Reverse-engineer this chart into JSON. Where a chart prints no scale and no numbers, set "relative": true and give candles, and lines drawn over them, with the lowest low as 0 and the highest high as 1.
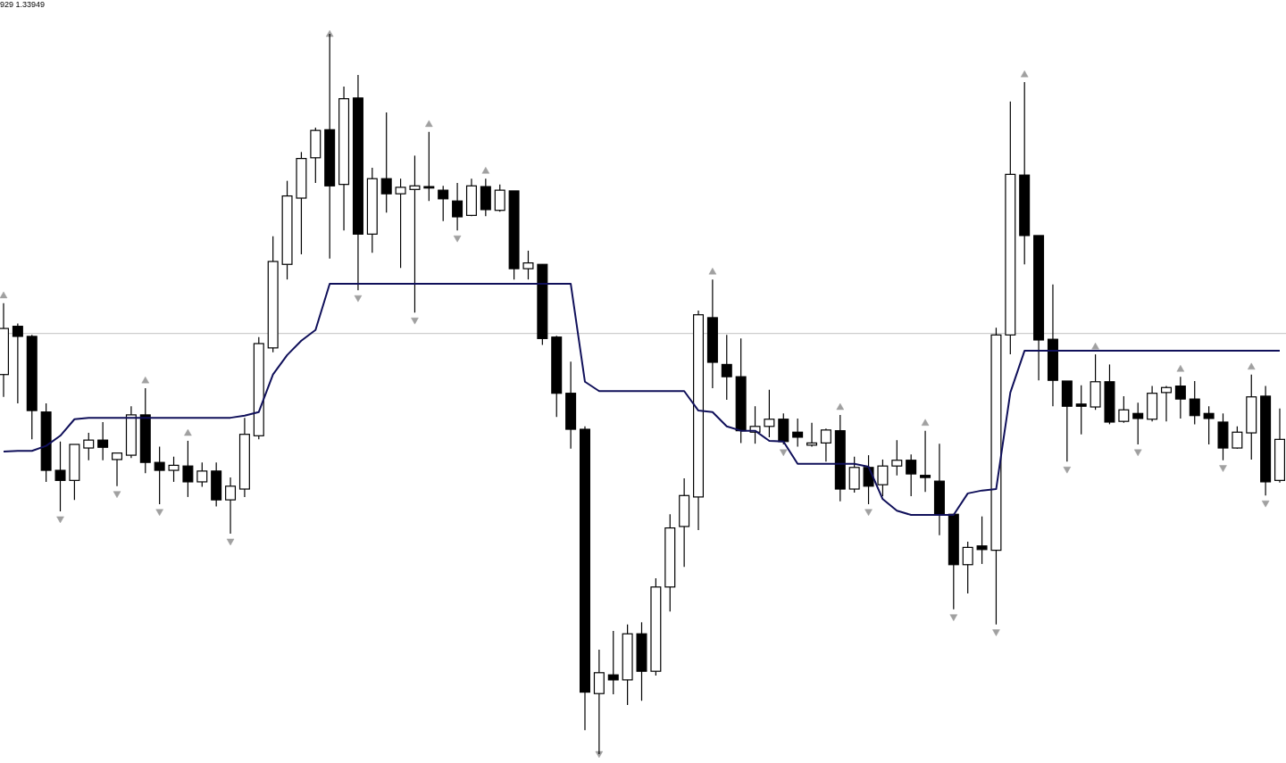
{
  "chart_data": {
    "type": "candlestick",
    "relative": true,
    "annotations": [
      "929 1.33949"
    ],
    "ref_lines": [
      {
        "axis": "y",
        "value": 0.584,
        "color": "#c0c0c0"
      }
    ],
    "categories": [
      null,
      null,
      null,
      null,
      null,
      null,
      null,
      null,
      null,
      null,
      null,
      null,
      null,
      null,
      null,
      null,
      null,
      null,
      null,
      null,
      null,
      null,
      null,
      null,
      null,
      null,
      null,
      null,
      null,
      null,
      null,
      null,
      null,
      null,
      null,
      null,
      null,
      null,
      null,
      null,
      null,
      null,
      null,
      null,
      null,
      null,
      null,
      null,
      null,
      null,
      null,
      null,
      null,
      null,
      null,
      null,
      null,
      null,
      null,
      null,
      null,
      null,
      null,
      null,
      null,
      null,
      null,
      null,
      null,
      null,
      null,
      null,
      null,
      null,
      null,
      null,
      null,
      null,
      null,
      null,
      null,
      null,
      null,
      null,
      null,
      null,
      null,
      null,
      null,
      null,
      null
    ],
    "series": [
      {
        "type": "line",
        "color": "#10105a",
        "marker": "none",
        "line_style": "solid",
        "values": [
          0.42,
          0.421,
          0.421,
          0.428,
          0.442,
          0.465,
          0.467,
          0.467,
          0.467,
          0.467,
          0.467,
          0.467,
          0.467,
          0.467,
          0.467,
          0.467,
          0.467,
          0.47,
          0.475,
          0.527,
          0.554,
          0.574,
          0.589,
          0.653,
          0.653,
          0.653,
          0.653,
          0.653,
          0.653,
          0.653,
          0.653,
          0.653,
          0.653,
          0.653,
          0.653,
          0.653,
          0.653,
          0.653,
          0.653,
          0.653,
          0.653,
          0.517,
          0.504,
          0.504,
          0.504,
          0.504,
          0.504,
          0.504,
          0.504,
          0.477,
          0.475,
          0.455,
          0.449,
          0.449,
          0.435,
          0.434,
          0.403,
          0.403,
          0.403,
          0.403,
          0.403,
          0.399,
          0.354,
          0.338,
          0.332,
          0.332,
          0.332,
          0.332,
          0.362,
          0.366,
          0.368,
          0.502,
          0.56,
          0.56,
          0.56,
          0.56,
          0.56,
          0.56,
          0.56,
          0.56,
          0.56,
          0.56,
          0.56,
          0.56,
          0.56,
          0.56,
          0.56,
          0.56,
          0.56,
          0.56,
          0.56
        ]
      },
      {
        "type": "scatter",
        "color": "#a0a0a0",
        "marker": "triangle",
        "values": [
          0.637,
          null,
          null,
          null,
          0.326,
          null,
          null,
          null,
          0.361,
          null,
          0.519,
          0.336,
          null,
          0.446,
          null,
          null,
          0.295,
          null,
          null,
          null,
          null,
          null,
          null,
          1,
          null,
          0.633,
          null,
          null,
          null,
          0.602,
          0.875,
          null,
          0.716,
          null,
          0.81,
          null,
          null,
          null,
          null,
          null,
          null,
          null,
          0,
          null,
          null,
          null,
          null,
          null,
          null,
          null,
          0.67,
          null,
          null,
          null,
          null,
          0.419,
          null,
          null,
          null,
          0.482,
          null,
          0.336,
          null,
          null,
          null,
          0.46,
          null,
          0.19,
          null,
          null,
          0.169,
          null,
          0.944,
          null,
          null,
          0.395,
          null,
          0.566,
          null,
          null,
          0.419,
          null,
          null,
          0.535,
          null,
          null,
          0.397,
          null,
          0.538,
          0.348,
          null
        ]
      },
      {
        "color": "#000000",
        "ohlc": [
          [
            0.527,
            0.626,
            0.496,
            0.591
          ],
          [
            0.594,
            0.598,
            0.487,
            0.58
          ],
          [
            0.58,
            0.582,
            0.437,
            0.477
          ],
          [
            0.475,
            0.487,
            0.378,
            0.394
          ],
          [
            0.394,
            0.434,
            0.337,
            0.38
          ],
          [
            0.38,
            0.43,
            0.353,
            0.43
          ],
          [
            0.425,
            0.446,
            0.408,
            0.436
          ],
          [
            0.436,
            0.461,
            0.408,
            0.426
          ],
          [
            0.409,
            0.418,
            0.372,
            0.418
          ],
          [
            0.415,
            0.483,
            0.411,
            0.471
          ],
          [
            0.471,
            0.508,
            0.39,
            0.405
          ],
          [
            0.405,
            0.427,
            0.347,
            0.394
          ],
          [
            0.394,
            0.413,
            0.378,
            0.401
          ],
          [
            0.4,
            0.435,
            0.357,
            0.378
          ],
          [
            0.378,
            0.405,
            0.371,
            0.393
          ],
          [
            0.393,
            0.405,
            0.344,
            0.353
          ],
          [
            0.353,
            0.384,
            0.306,
            0.372
          ],
          [
            0.368,
            0.467,
            0.357,
            0.444
          ],
          [
            0.442,
            0.579,
            0.437,
            0.57
          ],
          [
            0.564,
            0.719,
            0.558,
            0.684
          ],
          [
            0.68,
            0.796,
            0.659,
            0.775
          ],
          [
            0.772,
            0.836,
            0.694,
            0.827
          ],
          [
            0.828,
            0.87,
            0.793,
            0.866
          ],
          [
            0.867,
            1.0,
            0.688,
            0.789
          ],
          [
            0.791,
            0.927,
            0.727,
            0.91
          ],
          [
            0.911,
            0.943,
            0.644,
            0.722
          ],
          [
            0.722,
            0.814,
            0.696,
            0.799
          ],
          [
            0.799,
            0.891,
            0.752,
            0.778
          ],
          [
            0.778,
            0.799,
            0.675,
            0.787
          ],
          [
            0.784,
            0.831,
            0.613,
            0.789
          ],
          [
            0.788,
            0.864,
            0.768,
            0.786
          ],
          [
            0.783,
            0.789,
            0.74,
            0.771
          ],
          [
            0.768,
            0.793,
            0.727,
            0.746
          ],
          [
            0.748,
            0.799,
            0.747,
            0.789
          ],
          [
            0.788,
            0.799,
            0.747,
            0.756
          ],
          [
            0.755,
            0.791,
            0.753,
            0.783
          ],
          [
            0.782,
            0.782,
            0.659,
            0.674
          ],
          [
            0.674,
            0.699,
            0.659,
            0.682
          ],
          [
            0.68,
            0.68,
            0.568,
            0.577
          ],
          [
            0.579,
            0.581,
            0.468,
            0.501
          ],
          [
            0.501,
            0.545,
            0.424,
            0.451
          ],
          [
            0.451,
            0.455,
            0.033,
            0.086
          ],
          [
            0.084,
            0.145,
            0,
            0.113
          ],
          [
            0.11,
            0.171,
            0.083,
            0.103
          ],
          [
            0.103,
            0.18,
            0.068,
            0.167
          ],
          [
            0.167,
            0.183,
            0.074,
            0.115
          ],
          [
            0.115,
            0.244,
            0.109,
            0.232
          ],
          [
            0.232,
            0.333,
            0.198,
            0.314
          ],
          [
            0.316,
            0.383,
            0.26,
            0.359
          ],
          [
            0.357,
            0.616,
            0.311,
            0.61
          ],
          [
            0.606,
            0.659,
            0.508,
            0.544
          ],
          [
            0.541,
            0.582,
            0.492,
            0.524
          ],
          [
            0.524,
            0.577,
            0.432,
            0.449
          ],
          [
            0.447,
            0.483,
            0.431,
            0.455
          ],
          [
            0.455,
            0.506,
            0.44,
            0.465
          ],
          [
            0.465,
            0.473,
            0.43,
            0.434
          ],
          [
            0.447,
            0.466,
            0.427,
            0.44
          ],
          [
            0.429,
            0.46,
            0.427,
            0.432
          ],
          [
            0.432,
            0.452,
            0.406,
            0.45
          ],
          [
            0.449,
            0.471,
            0.351,
            0.368
          ],
          [
            0.368,
            0.413,
            0.363,
            0.398
          ],
          [
            0.398,
            0.415,
            0.347,
            0.372
          ],
          [
            0.374,
            0.409,
            0.358,
            0.4
          ],
          [
            0.4,
            0.436,
            0.387,
            0.408
          ],
          [
            0.408,
            0.416,
            0.358,
            0.389
          ],
          [
            0.387,
            0.449,
            0.364,
            0.384
          ],
          [
            0.379,
            0.431,
            0.304,
            0.333
          ],
          [
            0.333,
            0.333,
            0.201,
            0.263
          ],
          [
            0.263,
            0.295,
            0.223,
            0.287
          ],
          [
            0.289,
            0.33,
            0.264,
            0.284
          ],
          [
            0.283,
            0.592,
            0.18,
            0.582
          ],
          [
            0.582,
            0.906,
            0.555,
            0.805
          ],
          [
            0.804,
            0.933,
            0.68,
            0.72
          ],
          [
            0.72,
            0.72,
            0.519,
            0.575
          ],
          [
            0.576,
            0.652,
            0.483,
            0.519
          ],
          [
            0.518,
            0.518,
            0.406,
            0.483
          ],
          [
            0.486,
            0.512,
            0.444,
            0.483
          ],
          [
            0.482,
            0.555,
            0.478,
            0.517
          ],
          [
            0.517,
            0.541,
            0.458,
            0.461
          ],
          [
            0.462,
            0.497,
            0.46,
            0.478
          ],
          [
            0.473,
            0.488,
            0.43,
            0.466
          ],
          [
            0.465,
            0.511,
            0.462,
            0.501
          ],
          [
            0.502,
            0.511,
            0.462,
            0.509
          ],
          [
            0.511,
            0.524,
            0.466,
            0.493
          ],
          [
            0.493,
            0.518,
            0.458,
            0.47
          ],
          [
            0.473,
            0.483,
            0.43,
            0.466
          ],
          [
            0.461,
            0.473,
            0.408,
            0.425
          ],
          [
            0.425,
            0.455,
            0.424,
            0.447
          ],
          [
            0.446,
            0.527,
            0.409,
            0.496
          ],
          [
            0.497,
            0.511,
            0.359,
            0.378
          ],
          [
            0.38,
            0.48,
            0.377,
            0.437
          ]
        ]
      }
    ]
  }
}
